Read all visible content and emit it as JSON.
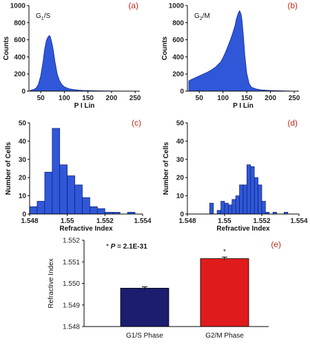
{
  "colors": {
    "histogram": "#2f57d8",
    "g1s": "#1c1d6e",
    "g2m": "#e01b1b",
    "panel_label": "#c0281c"
  },
  "chart_data": [
    {
      "panel": "(a)",
      "type": "area",
      "annotation": "G1/S",
      "xlabel": "P I Lin",
      "ylabel": "Counts",
      "xlim": [
        25,
        260
      ],
      "ylim": [
        0,
        1000
      ],
      "xticks": [
        50,
        100,
        150,
        200,
        250
      ],
      "yticks": [
        0,
        200,
        400,
        600,
        800,
        1000
      ],
      "x": [
        28,
        35,
        40,
        45,
        50,
        55,
        58,
        62,
        65,
        68,
        70,
        72,
        75,
        78,
        80,
        85,
        90,
        95,
        100,
        105,
        110,
        120,
        130,
        140,
        160,
        200,
        255
      ],
      "y": [
        10,
        20,
        35,
        80,
        180,
        350,
        480,
        590,
        630,
        650,
        640,
        600,
        530,
        430,
        350,
        200,
        120,
        75,
        50,
        38,
        28,
        18,
        12,
        8,
        5,
        2,
        0
      ]
    },
    {
      "panel": "(b)",
      "type": "area",
      "annotation": "G2/M",
      "xlabel": "P I Lin",
      "ylabel": "Counts",
      "xlim": [
        25,
        260
      ],
      "ylim": [
        0,
        1000
      ],
      "xticks": [
        50,
        100,
        150,
        200,
        250
      ],
      "yticks": [
        0,
        200,
        400,
        600,
        800,
        1000
      ],
      "x": [
        28,
        35,
        45,
        55,
        65,
        75,
        85,
        95,
        100,
        105,
        110,
        115,
        120,
        125,
        128,
        132,
        135,
        138,
        140,
        143,
        146,
        150,
        155,
        160,
        170,
        180,
        200,
        230,
        255
      ],
      "y": [
        120,
        140,
        165,
        190,
        215,
        245,
        285,
        340,
        390,
        450,
        520,
        590,
        670,
        760,
        840,
        910,
        940,
        900,
        830,
        650,
        420,
        210,
        90,
        45,
        25,
        15,
        8,
        3,
        0
      ]
    },
    {
      "panel": "(c)",
      "type": "bar",
      "xlabel": "Refractive Index",
      "ylabel": "Number of Cells",
      "xlim": [
        1.548,
        1.554
      ],
      "ylim": [
        0,
        50
      ],
      "xticks": [
        1.548,
        1.55,
        1.552,
        1.554
      ],
      "xtick_labels": [
        "1.548",
        "1.55",
        "1.552",
        "1.554"
      ],
      "yticks": [
        0,
        10,
        20,
        30,
        40,
        50
      ],
      "bin_width": 0.0004,
      "x": [
        1.5482,
        1.5486,
        1.549,
        1.5494,
        1.5498,
        1.5502,
        1.5506,
        1.551,
        1.5514,
        1.5518,
        1.5522,
        1.5526,
        1.5534
      ],
      "values": [
        4,
        7,
        23,
        47,
        27,
        21,
        16,
        9,
        4,
        3,
        1,
        1,
        1
      ]
    },
    {
      "panel": "(d)",
      "type": "bar",
      "xlabel": "Refractive Index",
      "ylabel": "Number of Cells",
      "xlim": [
        1.548,
        1.554
      ],
      "ylim": [
        0,
        50
      ],
      "xticks": [
        1.548,
        1.55,
        1.552,
        1.554
      ],
      "xtick_labels": [
        "1.548",
        "1.55",
        "1.552",
        "1.554"
      ],
      "yticks": [
        0,
        10,
        20,
        30,
        40,
        50
      ],
      "bin_width": 0.0002,
      "x": [
        1.5493,
        1.5497,
        1.5499,
        1.5501,
        1.5503,
        1.5505,
        1.5507,
        1.5509,
        1.5511,
        1.5513,
        1.5515,
        1.5517,
        1.5519,
        1.5521,
        1.5523,
        1.5527,
        1.5533
      ],
      "values": [
        6,
        2,
        7,
        6,
        5,
        8,
        10,
        16,
        16,
        27,
        26,
        20,
        16,
        7,
        1,
        1,
        1
      ]
    },
    {
      "panel": "(e)",
      "type": "bar",
      "annotation": "* P = 2.1E-31",
      "significance_marker": "*",
      "categories": [
        "G1/S Phase",
        "G2/M Phase"
      ],
      "values": [
        1.54978,
        1.55115
      ],
      "errors": [
        6e-05,
        7e-05
      ],
      "ylabel": "Refractive Index",
      "ylim": [
        1.548,
        1.552
      ],
      "yticks": [
        1.548,
        1.549,
        1.55,
        1.551,
        1.552
      ],
      "ytick_labels": [
        "1.548",
        "1.549",
        "1.550",
        "1.551",
        "1.552"
      ]
    }
  ]
}
